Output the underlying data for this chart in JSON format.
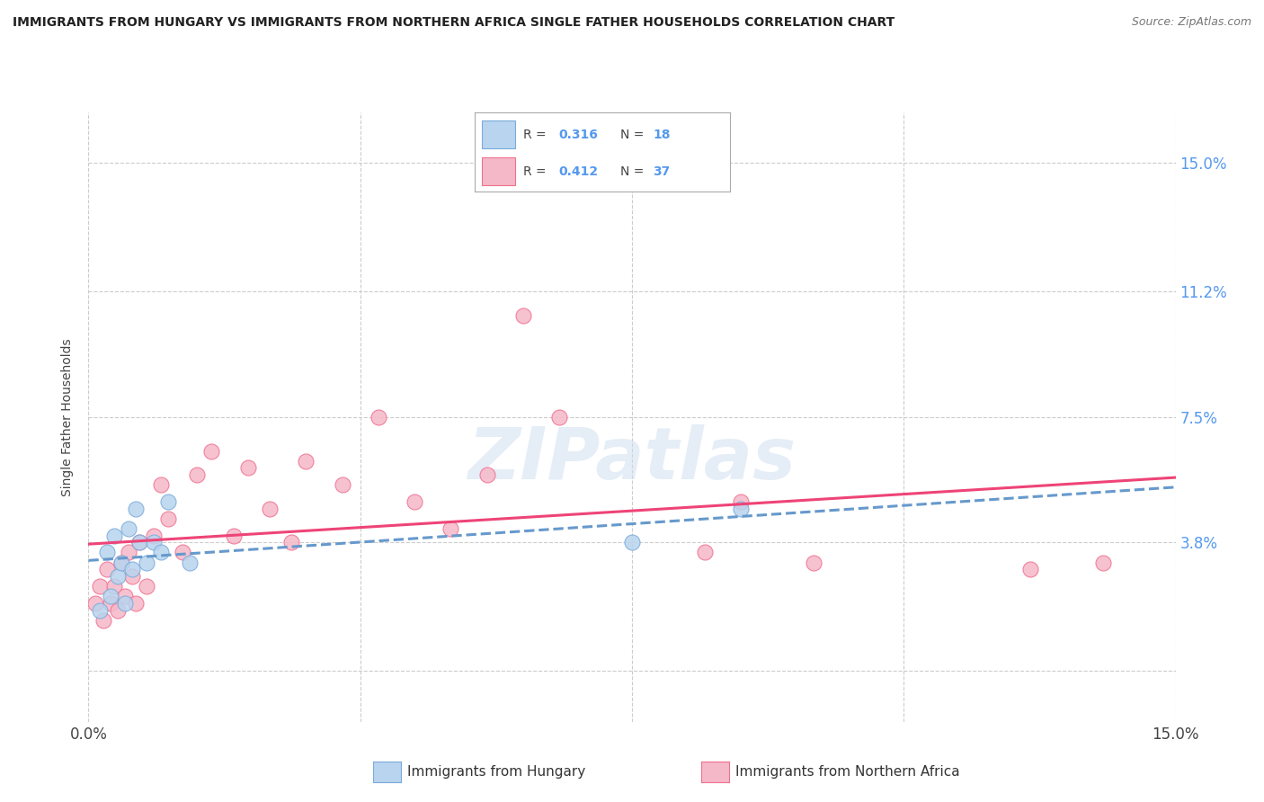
{
  "title": "IMMIGRANTS FROM HUNGARY VS IMMIGRANTS FROM NORTHERN AFRICA SINGLE FATHER HOUSEHOLDS CORRELATION CHART",
  "source": "Source: ZipAtlas.com",
  "ylabel": "Single Father Households",
  "xlim": [
    0.0,
    15.0
  ],
  "ylim": [
    -1.5,
    16.5
  ],
  "ytick_vals": [
    0.0,
    3.8,
    7.5,
    11.2,
    15.0
  ],
  "ytick_labels": [
    "",
    "3.8%",
    "7.5%",
    "11.2%",
    "15.0%"
  ],
  "xtick_vals": [
    0.0,
    3.75,
    7.5,
    11.25,
    15.0
  ],
  "xtick_labels": [
    "0.0%",
    "",
    "",
    "",
    "15.0%"
  ],
  "background_color": "#ffffff",
  "grid_color": "#cccccc",
  "hungary_color": "#b8d4ee",
  "hungary_edge_color": "#7aabda",
  "n_africa_color": "#f5b8c8",
  "n_africa_edge_color": "#f07090",
  "hungary_R": 0.316,
  "hungary_N": 18,
  "n_africa_R": 0.412,
  "n_africa_N": 37,
  "hungary_line_color": "#6699cc",
  "n_africa_line_color": "#ee4477",
  "legend_label_1": "Immigrants from Hungary",
  "legend_label_2": "Immigrants from Northern Africa",
  "watermark": "ZIPatlas",
  "r_n_color": "#5599ee",
  "hungary_x": [
    0.15,
    0.25,
    0.3,
    0.35,
    0.4,
    0.45,
    0.5,
    0.55,
    0.6,
    0.65,
    0.7,
    0.8,
    0.9,
    1.0,
    1.1,
    1.4,
    7.5,
    9.0
  ],
  "hungary_y": [
    1.8,
    3.5,
    2.2,
    4.0,
    2.8,
    3.2,
    2.0,
    4.2,
    3.0,
    4.8,
    3.8,
    3.2,
    3.8,
    3.5,
    5.0,
    3.2,
    3.8,
    4.8
  ],
  "n_africa_x": [
    0.1,
    0.15,
    0.2,
    0.25,
    0.3,
    0.35,
    0.4,
    0.45,
    0.5,
    0.55,
    0.6,
    0.65,
    0.7,
    0.8,
    0.9,
    1.0,
    1.1,
    1.3,
    1.5,
    1.7,
    2.0,
    2.2,
    2.5,
    2.8,
    3.0,
    3.5,
    4.0,
    4.5,
    5.0,
    5.5,
    6.0,
    6.5,
    8.5,
    9.0,
    10.0,
    13.0,
    14.0
  ],
  "n_africa_y": [
    2.0,
    2.5,
    1.5,
    3.0,
    2.0,
    2.5,
    1.8,
    3.2,
    2.2,
    3.5,
    2.8,
    2.0,
    3.8,
    2.5,
    4.0,
    5.5,
    4.5,
    3.5,
    5.8,
    6.5,
    4.0,
    6.0,
    4.8,
    3.8,
    6.2,
    5.5,
    7.5,
    5.0,
    4.2,
    5.8,
    10.5,
    7.5,
    3.5,
    5.0,
    3.2,
    3.0,
    3.2
  ]
}
